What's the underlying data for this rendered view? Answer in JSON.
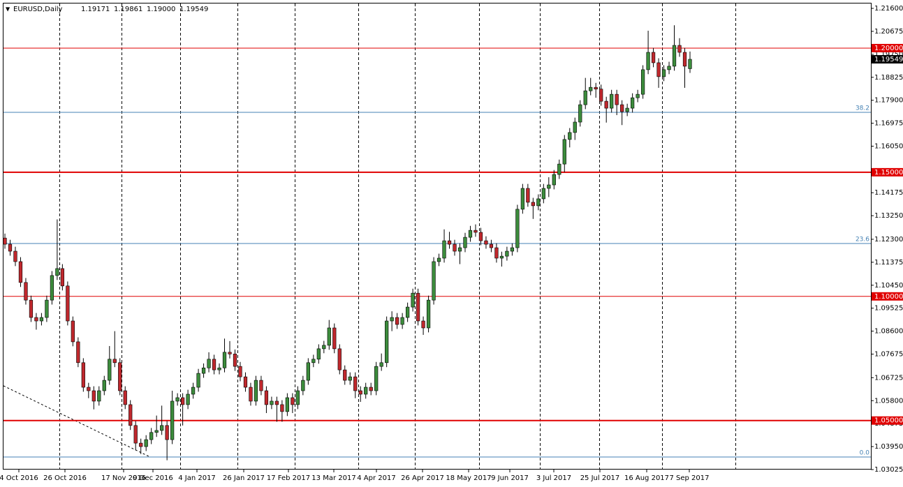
{
  "chart_data": {
    "type": "candlestick",
    "title": "EURUSD,Daily",
    "header": {
      "values": [
        1.19171,
        1.19861,
        1.19,
        1.19549
      ],
      "value_labels": [
        "1.19171",
        "1.19861",
        "1.19000",
        "1.19549"
      ]
    },
    "ylim": [
      1.03025,
      1.21825
    ],
    "yticks": [
      {
        "value": 1.216,
        "label": "1.21600"
      },
      {
        "value": 1.20675,
        "label": "1.20675"
      },
      {
        "value": 1.1975,
        "label": "1.19750"
      },
      {
        "value": 1.18825,
        "label": "1.18825"
      },
      {
        "value": 1.179,
        "label": "1.17900"
      },
      {
        "value": 1.16975,
        "label": "1.16975"
      },
      {
        "value": 1.1605,
        "label": "1.16050"
      },
      {
        "value": 1.14175,
        "label": "1.14175"
      },
      {
        "value": 1.1325,
        "label": "1.13250"
      },
      {
        "value": 1.123,
        "label": "1.12300"
      },
      {
        "value": 1.11375,
        "label": "1.11375"
      },
      {
        "value": 1.1045,
        "label": "1.10450"
      },
      {
        "value": 1.09525,
        "label": "1.09525"
      },
      {
        "value": 1.086,
        "label": "1.08600"
      },
      {
        "value": 1.07675,
        "label": "1.07675"
      },
      {
        "value": 1.06725,
        "label": "1.06725"
      },
      {
        "value": 1.058,
        "label": "1.05800"
      },
      {
        "value": 1.04875,
        "label": "1.04875"
      },
      {
        "value": 1.0395,
        "label": "1.03950"
      },
      {
        "value": 1.03025,
        "label": "1.03025"
      }
    ],
    "x_labels": [
      "4 Oct 2016",
      "26 Oct 2016",
      "17 Nov 2016",
      "9 Dec 2016",
      "4 Jan 2017",
      "26 Jan 2017",
      "17 Feb 2017",
      "13 Mar 2017",
      "4 Apr 2017",
      "26 Apr 2017",
      "18 May 2017",
      "9 Jun 2017",
      "3 Jul 2017",
      "25 Jul 2017",
      "16 Aug 2017",
      "7 Sep 2017"
    ],
    "levels": [
      {
        "value": 1.2,
        "label": "1.20000"
      },
      {
        "value": 1.15,
        "label": "1.15000"
      },
      {
        "value": 1.1,
        "label": "1.10000"
      },
      {
        "value": 1.05,
        "label": "1.05000"
      }
    ],
    "level_color": "#e00000",
    "fib_levels": [
      {
        "value": 1.17413,
        "label": "38.2"
      },
      {
        "value": 1.1213,
        "label": "23.6"
      },
      {
        "value": 1.0353,
        "label": "0.0"
      }
    ],
    "fib_color": "#4682b4",
    "up_color": "#3c8c3c",
    "down_color": "#c0282d",
    "candles": [
      [
        1.1235,
        1.1253,
        1.1192,
        1.121
      ],
      [
        1.121,
        1.1228,
        1.1164,
        1.1182
      ],
      [
        1.1182,
        1.12,
        1.1122,
        1.114
      ],
      [
        1.114,
        1.1158,
        1.1038,
        1.1056
      ],
      [
        1.1056,
        1.1074,
        1.0967,
        1.0985
      ],
      [
        1.0985,
        1.1003,
        1.0897,
        1.0915
      ],
      [
        1.0915,
        1.0933,
        1.0866,
        1.0901
      ],
      [
        1.0901,
        1.0933,
        1.0883,
        1.0915
      ],
      [
        1.0915,
        1.1003,
        1.0897,
        1.0985
      ],
      [
        1.0985,
        1.1102,
        1.0967,
        1.1084
      ],
      [
        1.1084,
        1.131,
        1.1066,
        1.1112
      ],
      [
        1.1112,
        1.113,
        1.1024,
        1.1042
      ],
      [
        1.1042,
        1.106,
        1.0883,
        1.0901
      ],
      [
        1.0901,
        1.0919,
        1.0799,
        1.0817
      ],
      [
        1.0817,
        1.0835,
        1.0715,
        1.0733
      ],
      [
        1.0733,
        1.0751,
        1.0616,
        1.0634
      ],
      [
        1.0634,
        1.0652,
        1.059,
        1.062
      ],
      [
        1.062,
        1.0638,
        1.0545,
        1.0578
      ],
      [
        1.0578,
        1.0638,
        1.056,
        1.062
      ],
      [
        1.062,
        1.068,
        1.0602,
        1.0662
      ],
      [
        1.0662,
        1.08,
        1.0644,
        1.0747
      ],
      [
        1.0747,
        1.086,
        1.0715,
        1.0733
      ],
      [
        1.0733,
        1.0751,
        1.0602,
        1.062
      ],
      [
        1.062,
        1.0638,
        1.0546,
        1.0564
      ],
      [
        1.0564,
        1.0582,
        1.0462,
        1.048
      ],
      [
        1.048,
        1.0498,
        1.038,
        1.0409
      ],
      [
        1.0409,
        1.0427,
        1.0365,
        1.0395
      ],
      [
        1.0395,
        1.0441,
        1.0377,
        1.0423
      ],
      [
        1.0423,
        1.047,
        1.0405,
        1.0452
      ],
      [
        1.0452,
        1.052,
        1.0434,
        1.046
      ],
      [
        1.046,
        1.056,
        1.0442,
        1.048
      ],
      [
        1.048,
        1.0498,
        1.034,
        1.0423
      ],
      [
        1.0423,
        1.062,
        1.0405,
        1.0578
      ],
      [
        1.0578,
        1.061,
        1.056,
        1.0592
      ],
      [
        1.0592,
        1.061,
        1.048,
        1.0564
      ],
      [
        1.0564,
        1.0624,
        1.0546,
        1.0606
      ],
      [
        1.0606,
        1.0652,
        1.0588,
        1.0634
      ],
      [
        1.0634,
        1.0708,
        1.0616,
        1.069
      ],
      [
        1.069,
        1.073,
        1.0672,
        1.0712
      ],
      [
        1.0712,
        1.0775,
        1.0694,
        1.0747
      ],
      [
        1.0747,
        1.0765,
        1.0686,
        1.0704
      ],
      [
        1.0704,
        1.073,
        1.0686,
        1.0712
      ],
      [
        1.0712,
        1.083,
        1.0694,
        1.0775
      ],
      [
        1.0775,
        1.082,
        1.075,
        1.0768
      ],
      [
        1.0768,
        1.0786,
        1.07,
        1.0718
      ],
      [
        1.0718,
        1.0736,
        1.0658,
        1.0676
      ],
      [
        1.0676,
        1.0694,
        1.0616,
        1.0634
      ],
      [
        1.0634,
        1.0652,
        1.056,
        1.0578
      ],
      [
        1.0578,
        1.068,
        1.056,
        1.0662
      ],
      [
        1.0662,
        1.068,
        1.0602,
        1.062
      ],
      [
        1.062,
        1.0638,
        1.053,
        1.0564
      ],
      [
        1.0564,
        1.0596,
        1.0546,
        1.0578
      ],
      [
        1.0578,
        1.0596,
        1.0495,
        1.0564
      ],
      [
        1.0564,
        1.0582,
        1.0495,
        1.0536
      ],
      [
        1.0536,
        1.061,
        1.0518,
        1.0592
      ],
      [
        1.0592,
        1.061,
        1.053,
        1.0564
      ],
      [
        1.0564,
        1.0638,
        1.0546,
        1.062
      ],
      [
        1.062,
        1.068,
        1.0602,
        1.0662
      ],
      [
        1.0662,
        1.0751,
        1.0644,
        1.0733
      ],
      [
        1.0733,
        1.0765,
        1.0715,
        1.0747
      ],
      [
        1.0747,
        1.0807,
        1.0729,
        1.0789
      ],
      [
        1.0789,
        1.0821,
        1.0771,
        1.0803
      ],
      [
        1.0803,
        1.0905,
        1.0785,
        1.0873
      ],
      [
        1.0873,
        1.0891,
        1.0771,
        1.0789
      ],
      [
        1.0789,
        1.0807,
        1.0686,
        1.0704
      ],
      [
        1.0704,
        1.0722,
        1.0644,
        1.0662
      ],
      [
        1.0662,
        1.0694,
        1.0644,
        1.0676
      ],
      [
        1.0676,
        1.0694,
        1.059,
        1.062
      ],
      [
        1.062,
        1.0638,
        1.0575,
        1.0606
      ],
      [
        1.0606,
        1.0652,
        1.0588,
        1.0634
      ],
      [
        1.0634,
        1.0652,
        1.0602,
        1.062
      ],
      [
        1.062,
        1.0736,
        1.0602,
        1.0718
      ],
      [
        1.0718,
        1.077,
        1.07,
        1.0733
      ],
      [
        1.0733,
        1.0919,
        1.0715,
        1.0901
      ],
      [
        1.0901,
        1.094,
        1.086,
        1.0915
      ],
      [
        1.0915,
        1.0933,
        1.0869,
        1.0887
      ],
      [
        1.0887,
        1.0933,
        1.0869,
        1.0915
      ],
      [
        1.0915,
        1.0975,
        1.0897,
        1.0957
      ],
      [
        1.0957,
        1.1031,
        1.0939,
        1.1013
      ],
      [
        1.1013,
        1.1031,
        1.0883,
        1.0901
      ],
      [
        1.0901,
        1.0919,
        1.0845,
        1.0873
      ],
      [
        1.0873,
        1.1003,
        1.0855,
        1.0985
      ],
      [
        1.0985,
        1.1158,
        1.0967,
        1.114
      ],
      [
        1.114,
        1.1172,
        1.1122,
        1.1154
      ],
      [
        1.1154,
        1.127,
        1.1136,
        1.1224
      ],
      [
        1.1224,
        1.126,
        1.1192,
        1.121
      ],
      [
        1.121,
        1.1228,
        1.1164,
        1.1182
      ],
      [
        1.1182,
        1.1214,
        1.113,
        1.1196
      ],
      [
        1.1196,
        1.1256,
        1.1178,
        1.1238
      ],
      [
        1.1238,
        1.1284,
        1.122,
        1.1266
      ],
      [
        1.1266,
        1.129,
        1.124,
        1.1258
      ],
      [
        1.1258,
        1.1276,
        1.1206,
        1.1224
      ],
      [
        1.1224,
        1.1242,
        1.1192,
        1.121
      ],
      [
        1.121,
        1.1228,
        1.1178,
        1.1196
      ],
      [
        1.1196,
        1.1214,
        1.1136,
        1.1154
      ],
      [
        1.1154,
        1.118,
        1.112,
        1.1162
      ],
      [
        1.1162,
        1.12,
        1.1144,
        1.1182
      ],
      [
        1.1182,
        1.1214,
        1.1164,
        1.1196
      ],
      [
        1.1196,
        1.1369,
        1.1178,
        1.1351
      ],
      [
        1.1351,
        1.1453,
        1.1333,
        1.1435
      ],
      [
        1.1435,
        1.1453,
        1.1361,
        1.1379
      ],
      [
        1.1379,
        1.1397,
        1.1312,
        1.1365
      ],
      [
        1.1365,
        1.1411,
        1.1347,
        1.1393
      ],
      [
        1.1393,
        1.1453,
        1.1375,
        1.1435
      ],
      [
        1.1435,
        1.148,
        1.14,
        1.1449
      ],
      [
        1.1449,
        1.1509,
        1.1431,
        1.1491
      ],
      [
        1.1491,
        1.1551,
        1.1473,
        1.1533
      ],
      [
        1.1533,
        1.165,
        1.15,
        1.1632
      ],
      [
        1.1632,
        1.1678,
        1.16,
        1.166
      ],
      [
        1.166,
        1.172,
        1.163,
        1.1702
      ],
      [
        1.1702,
        1.179,
        1.1684,
        1.1772
      ],
      [
        1.1772,
        1.188,
        1.1754,
        1.1828
      ],
      [
        1.1828,
        1.188,
        1.181,
        1.1842
      ],
      [
        1.1842,
        1.186,
        1.18,
        1.1835
      ],
      [
        1.1835,
        1.1853,
        1.1768,
        1.1786
      ],
      [
        1.1786,
        1.1804,
        1.17,
        1.1758
      ],
      [
        1.1758,
        1.1832,
        1.174,
        1.1814
      ],
      [
        1.1814,
        1.1832,
        1.173,
        1.1772
      ],
      [
        1.1772,
        1.179,
        1.169,
        1.1744
      ],
      [
        1.1744,
        1.1776,
        1.1726,
        1.1758
      ],
      [
        1.1758,
        1.1818,
        1.174,
        1.18
      ],
      [
        1.18,
        1.1832,
        1.1782,
        1.1814
      ],
      [
        1.1814,
        1.1931,
        1.1796,
        1.1913
      ],
      [
        1.1913,
        1.207,
        1.1895,
        1.1983
      ],
      [
        1.1983,
        1.2001,
        1.1923,
        1.1941
      ],
      [
        1.1941,
        1.1959,
        1.184,
        1.1885
      ],
      [
        1.1885,
        1.1931,
        1.1867,
        1.1913
      ],
      [
        1.1913,
        1.1945,
        1.1895,
        1.1927
      ],
      [
        1.1927,
        1.2092,
        1.1909,
        1.2011
      ],
      [
        1.2011,
        1.204,
        1.1965,
        1.1983
      ],
      [
        1.1983,
        1.2001,
        1.184,
        1.1927
      ],
      [
        1.19171,
        1.19861,
        1.19,
        1.19549
      ]
    ]
  }
}
